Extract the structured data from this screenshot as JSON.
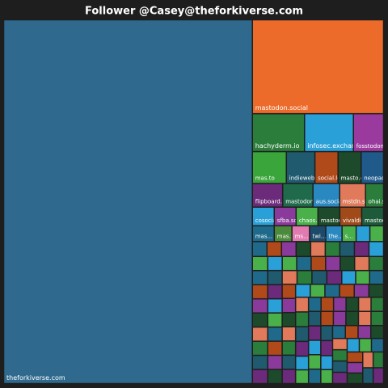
{
  "chart_data": {
    "type": "treemap",
    "title": "Follower @Casey@theforkiverse.com",
    "categories": [
      "theforkiverse.com",
      "mastodon.social",
      "hachyderm.io",
      "infosec.exchange",
      "fosstodon.org",
      "mas.to",
      "indieweb.social",
      "social.lol",
      "masto.es",
      "neopaquita.es",
      "flipboard.social",
      "mastodon.online",
      "aus.social",
      "mstdn.social",
      "ohai.so...",
      "cosocia...",
      "sfba.so...",
      "chaos...",
      "mastod...",
      "vivaldi...",
      "mastod...",
      "mas...",
      "mas...",
      "ms...",
      "twi...",
      "the...",
      "s...",
      null,
      null,
      null,
      null,
      null,
      null,
      null,
      null,
      null,
      null,
      null,
      null,
      null,
      null,
      null,
      null,
      null,
      null,
      null,
      null,
      null,
      null,
      null,
      null,
      null,
      null,
      null,
      null,
      null,
      null,
      null,
      null,
      null,
      null,
      null,
      null,
      null,
      null,
      null,
      null,
      null,
      null,
      null,
      null,
      null,
      null,
      null,
      null,
      null,
      null,
      null,
      null,
      null,
      null,
      null,
      null,
      null,
      null,
      null,
      null,
      null,
      null,
      null,
      null,
      null,
      null,
      null,
      null,
      null,
      null,
      null,
      null,
      null,
      null,
      null,
      null,
      null,
      null,
      null,
      null,
      null,
      null,
      null,
      null,
      null,
      null,
      null,
      null,
      null,
      null,
      null,
      null,
      null,
      null,
      null,
      null,
      null,
      null,
      null,
      null
    ],
    "values": [
      137700,
      18745,
      3008,
      2820,
      1739,
      1650,
      1386,
      1122,
      1122,
      1088,
      1088,
      1088,
      960,
      928,
      648,
      621,
      621,
      621,
      621,
      621,
      621,
      527,
      425,
      425,
      391,
      391,
      340,
      330,
      330,
      330,
      330,
      330,
      330,
      330,
      330,
      330,
      330,
      330,
      330,
      330,
      330,
      330,
      330,
      330,
      330,
      330,
      330,
      310,
      310,
      310,
      310,
      310,
      310,
      310,
      310,
      310,
      310,
      310,
      310,
      310,
      310,
      310,
      310,
      310,
      310,
      310,
      310,
      290,
      290,
      290,
      290,
      290,
      290,
      290,
      290,
      290,
      290,
      290,
      290,
      290,
      290,
      290,
      290,
      290,
      290,
      290,
      290,
      270,
      270,
      270,
      270,
      270,
      270,
      270,
      270,
      270,
      270,
      270,
      270,
      270,
      270,
      270,
      270,
      270,
      270,
      270,
      270,
      250,
      250,
      250,
      250,
      250,
      250,
      250,
      250,
      250,
      250,
      250,
      250,
      250,
      250,
      250,
      250,
      250,
      250,
      250,
      250
    ],
    "colors": [
      "#2f6a8e",
      "#ec6a2a",
      "#2a7d3a",
      "#2aa0d8",
      "#9b3a9e",
      "#3aa53a",
      "#1f5a6e",
      "#b04a1a",
      "#1d4a2a",
      "#1f5a8a",
      "#6b2a7a",
      "#1f6a4a",
      "#2a88c0",
      "#e07a5a",
      "#2a7d3a",
      "#2aa0d8",
      "#8a3a9a",
      "#4ab04a",
      "#1d4a2a",
      "#a04a1a",
      "#1d5a3a",
      "#1f6a8a",
      "#4a8a3a",
      "#e07ab0",
      "#1d4a6a",
      "#2a88c0",
      "#4ab04a",
      "#2aa0d8",
      "#4ab04a",
      "#1f6a8a",
      "#b04a1a",
      "#8a3a9a",
      "#1d4a2a",
      "#e07a5a",
      "#2a7d3a",
      "#1f5a6e",
      "#6b2a7a",
      "#2aa0d8",
      "#4ab04a",
      "#1f6a8a",
      "#b04a1a",
      "#8a3a9a",
      "#1d4a2a",
      "#e07a5a",
      "#2a7d3a",
      "#1f5a6e",
      "#6b2a7a",
      "#2aa0d8",
      "#4ab04a",
      "#1f6a8a",
      "#b04a1a",
      "#8a3a9a",
      "#1d4a2a",
      "#e07a5a",
      "#2a7d3a",
      "#1f5a6e",
      "#6b2a7a",
      "#2aa0d8",
      "#4ab04a",
      "#1f6a8a",
      "#b04a1a",
      "#8a3a9a",
      "#1d4a2a",
      "#e07a5a",
      "#2a7d3a",
      "#1f5a6e",
      "#6b2a7a",
      "#2aa0d8",
      "#4ab04a",
      "#1f6a8a",
      "#b04a1a",
      "#8a3a9a",
      "#1d4a2a",
      "#e07a5a",
      "#2a7d3a",
      "#1f5a6e",
      "#6b2a7a",
      "#2aa0d8",
      "#4ab04a",
      "#1f6a8a",
      "#b04a1a",
      "#8a3a9a",
      "#1d4a2a",
      "#e07a5a",
      "#2a7d3a",
      "#1f5a6e",
      "#6b2a7a",
      "#2aa0d8",
      "#4ab04a",
      "#1f6a8a",
      "#b04a1a",
      "#8a3a9a",
      "#1d4a2a",
      "#e07a5a",
      "#2a7d3a",
      "#1f5a6e",
      "#6b2a7a",
      "#2aa0d8",
      "#4ab04a",
      "#1f6a8a",
      "#b04a1a",
      "#8a3a9a",
      "#1d4a2a",
      "#e07a5a",
      "#2a7d3a",
      "#1f5a6e",
      "#6b2a7a",
      "#2aa0d8",
      "#4ab04a",
      "#1f6a8a",
      "#b04a1a",
      "#8a3a9a",
      "#1d4a2a",
      "#e07a5a",
      "#2a7d3a",
      "#1f5a6e",
      "#6b2a7a",
      "#2aa0d8",
      "#4ab04a",
      "#1f6a8a",
      "#b04a1a",
      "#8a3a9a",
      "#1d4a2a",
      "#e07a5a",
      "#2a7d3a",
      "#1f5a6e",
      "#6b2a7a"
    ]
  }
}
